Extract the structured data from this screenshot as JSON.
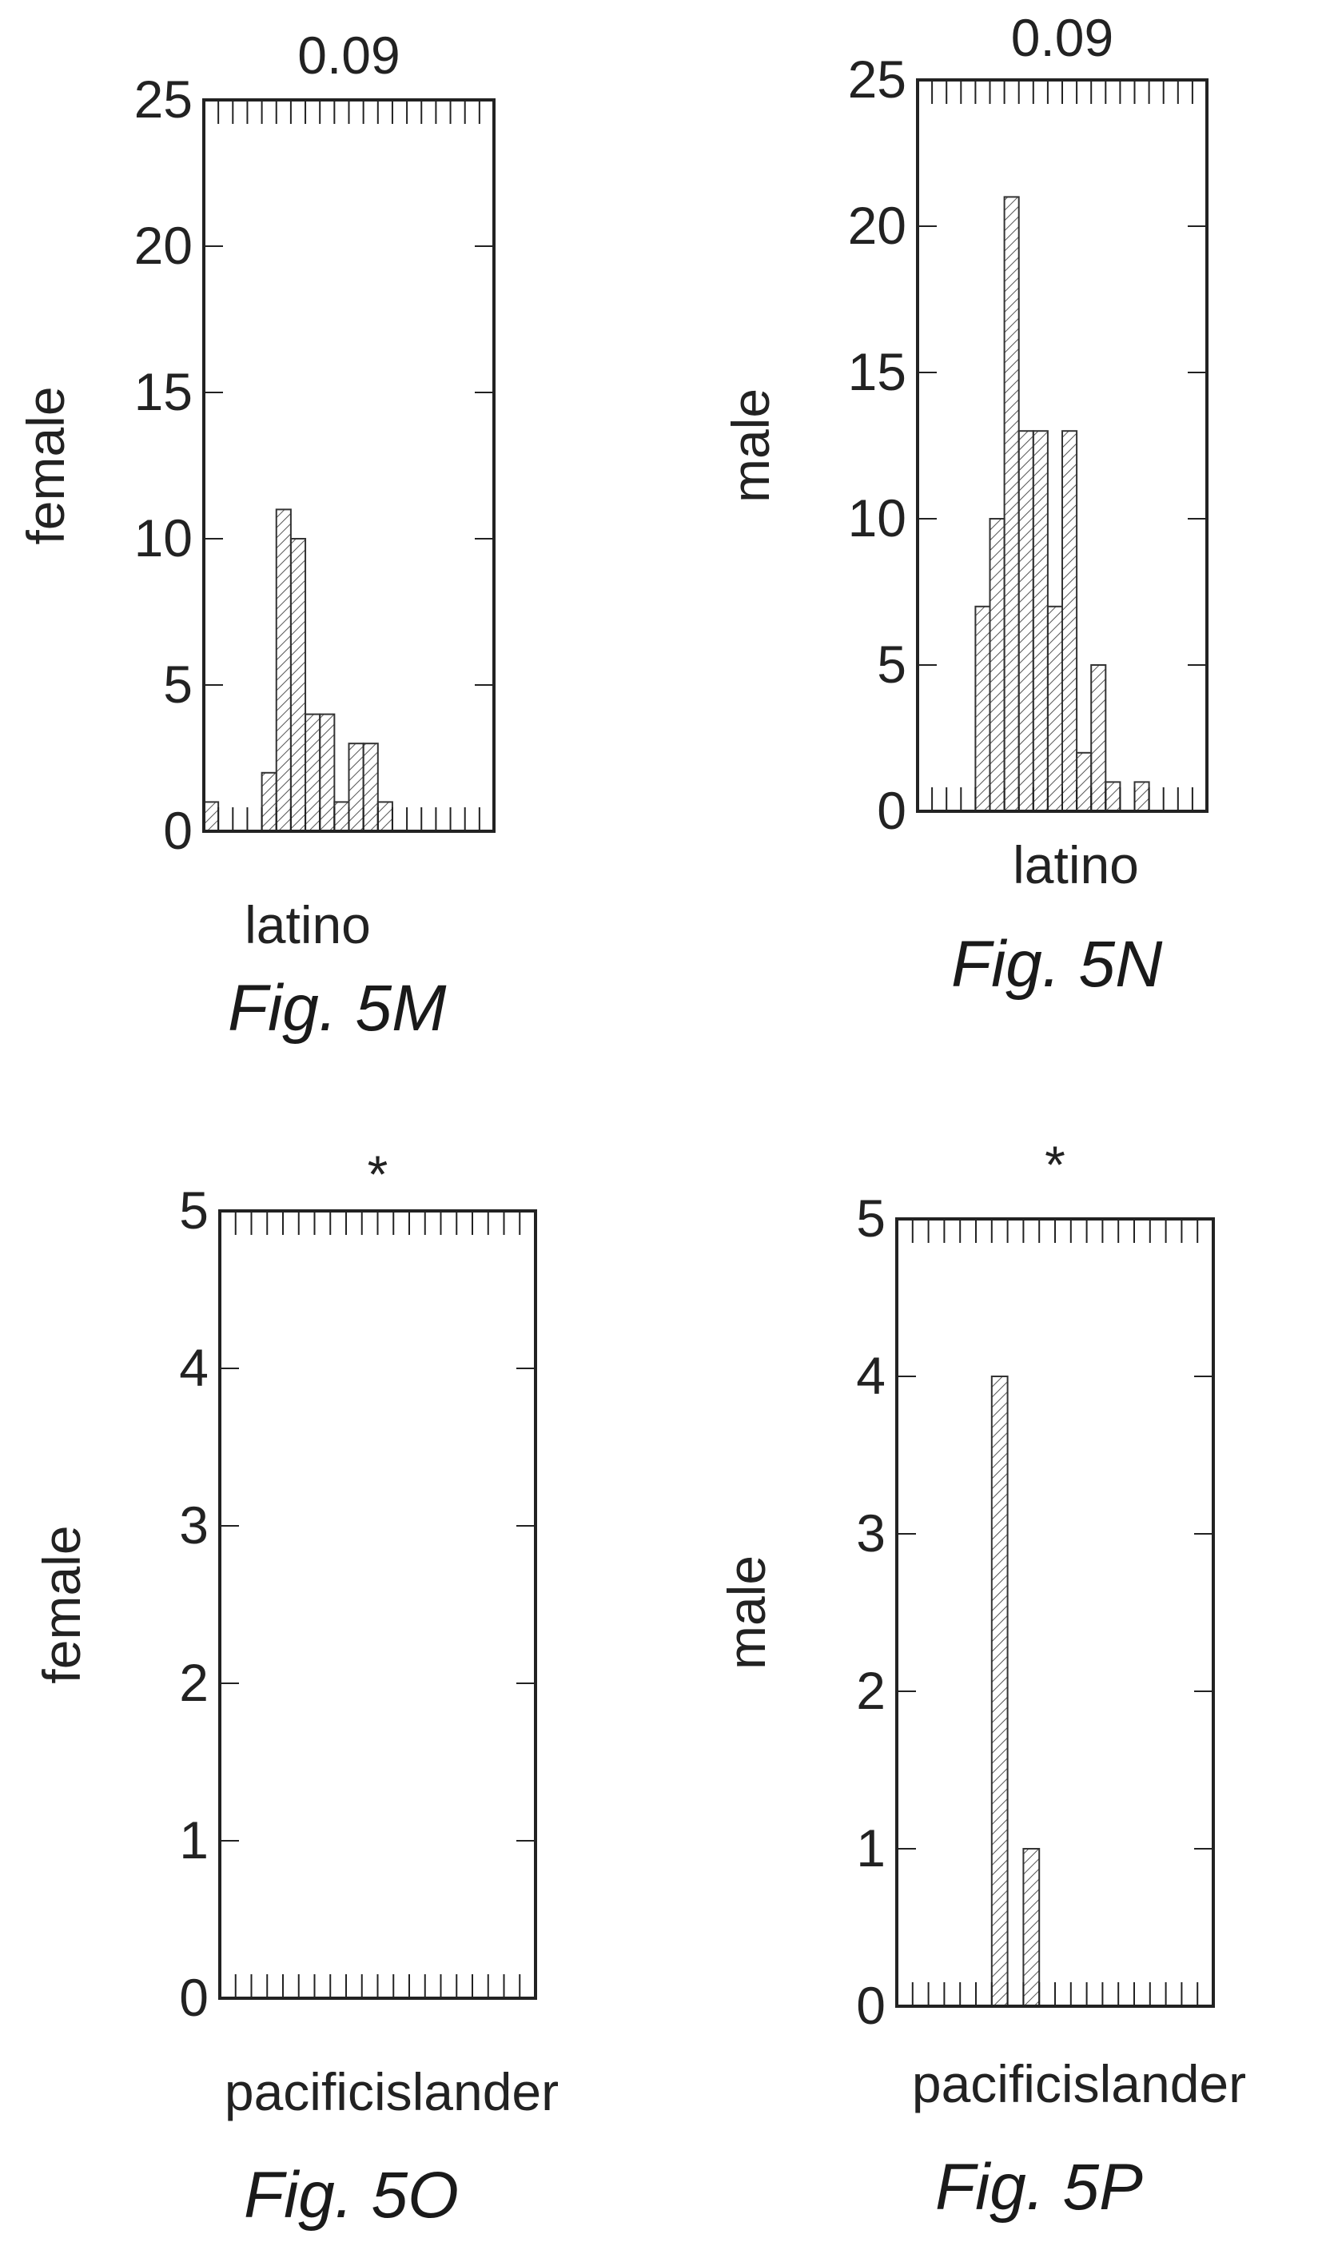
{
  "chart_data": [
    {
      "type": "bar",
      "figure": "Fig. 5M",
      "title": "0.09",
      "ylabel": "female",
      "xlabel": "latino",
      "ylim": [
        0,
        25
      ],
      "yticks": [
        "0",
        "5",
        "10",
        "15",
        "20",
        "25"
      ],
      "values": [
        1,
        0,
        0,
        0,
        2,
        11,
        10,
        4,
        4,
        1,
        3,
        3,
        1,
        0,
        0,
        0,
        0,
        0,
        0,
        0
      ]
    },
    {
      "type": "bar",
      "figure": "Fig. 5N",
      "title": "0.09",
      "ylabel": "male",
      "xlabel": "latino",
      "ylim": [
        0,
        25
      ],
      "yticks": [
        "0",
        "5",
        "10",
        "15",
        "20",
        "25"
      ],
      "values": [
        0,
        0,
        0,
        0,
        7,
        10,
        21,
        13,
        13,
        7,
        13,
        2,
        5,
        1,
        0,
        1,
        0,
        0,
        0,
        0
      ]
    },
    {
      "type": "bar",
      "figure": "Fig. 5O",
      "title": "*",
      "ylabel": "female",
      "xlabel": "pacificislander",
      "ylim": [
        0,
        5
      ],
      "yticks": [
        "0",
        "1",
        "2",
        "3",
        "4",
        "5"
      ],
      "values": [
        0,
        0,
        0,
        0,
        0,
        0,
        0,
        0,
        0,
        0,
        0,
        0,
        0,
        0,
        0,
        0,
        0,
        0,
        0,
        0
      ]
    },
    {
      "type": "bar",
      "figure": "Fig. 5P",
      "title": "*",
      "ylabel": "male",
      "xlabel": "pacificislander",
      "ylim": [
        0,
        5
      ],
      "yticks": [
        "0",
        "1",
        "2",
        "3",
        "4",
        "5"
      ],
      "values": [
        0,
        0,
        0,
        0,
        0,
        0,
        4,
        0,
        1,
        0,
        0,
        0,
        0,
        0,
        0,
        0,
        0,
        0,
        0,
        0
      ]
    }
  ]
}
